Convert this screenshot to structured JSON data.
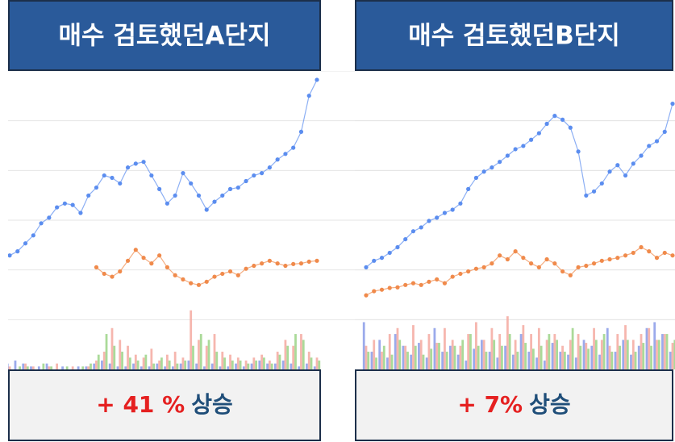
{
  "chart_data": [
    {
      "type": "line",
      "title": "매수 검토했던A단지",
      "change_label": "+ 41 %",
      "change_suffix": "상승",
      "ylim": [
        0,
        100
      ],
      "grid": true,
      "series": [
        {
          "color": "#5b8def",
          "values": [
            38.6,
            40,
            42.7,
            45.4,
            49.5,
            51.4,
            54.9,
            56.2,
            55.7,
            53,
            58.9,
            61.6,
            65.7,
            64.9,
            63,
            68.4,
            69.7,
            70.3,
            65.7,
            61.1,
            56.2,
            58.9,
            66.5,
            63,
            58.9,
            54.1,
            56.8,
            58.9,
            61.1,
            61.6,
            63.8,
            65.7,
            66.5,
            68.4,
            71.1,
            73,
            75.1,
            80.5,
            92.7,
            98.1
          ]
        },
        {
          "color": "#f08a4b",
          "values": [
            null,
            null,
            null,
            null,
            null,
            null,
            null,
            null,
            null,
            null,
            null,
            34.6,
            32.4,
            31.4,
            33.2,
            36.8,
            40.5,
            37.8,
            35.9,
            38.6,
            34.6,
            31.9,
            30.5,
            29.2,
            28.6,
            29.7,
            31.4,
            32.4,
            33.2,
            31.9,
            34.1,
            35.1,
            35.9,
            36.8,
            35.9,
            35.1,
            35.7,
            35.9,
            36.5,
            36.8
          ]
        }
      ],
      "bars": [
        {
          "color": "#8a9be8",
          "values": [
            2,
            3,
            2,
            1,
            1,
            2,
            0,
            1,
            0,
            1,
            1,
            2,
            3,
            2,
            1,
            1,
            2,
            1,
            1,
            2,
            1,
            1,
            2,
            3,
            2,
            1,
            2,
            1,
            1,
            2,
            1,
            2,
            3,
            2,
            2,
            3,
            2,
            1,
            2,
            1
          ]
        },
        {
          "color": "#f5a9a0",
          "values": [
            1,
            0,
            2,
            1,
            0,
            1,
            2,
            0,
            1,
            0,
            1,
            3,
            6,
            14,
            10,
            8,
            5,
            4,
            7,
            3,
            5,
            6,
            4,
            20,
            10,
            8,
            12,
            6,
            5,
            4,
            3,
            4,
            5,
            3,
            6,
            10,
            8,
            12,
            6,
            4
          ]
        },
        {
          "color": "#9bd387",
          "values": [
            0,
            1,
            1,
            0,
            2,
            1,
            0,
            1,
            0,
            1,
            2,
            5,
            12,
            8,
            6,
            4,
            3,
            5,
            2,
            4,
            3,
            2,
            3,
            8,
            12,
            10,
            6,
            4,
            3,
            3,
            2,
            3,
            4,
            2,
            5,
            8,
            12,
            10,
            4,
            3
          ]
        }
      ]
    },
    {
      "type": "line",
      "title": "매수 검토했던B단지",
      "change_label": "+ 7%",
      "change_suffix": "상승",
      "ylim": [
        0,
        100
      ],
      "grid": true,
      "series": [
        {
          "color": "#5b8def",
          "values": [
            34.6,
            36.8,
            37.8,
            39.5,
            41.4,
            44.1,
            46.8,
            48.1,
            50.3,
            51.4,
            53,
            54.1,
            56.2,
            61.1,
            64.9,
            67,
            68.4,
            70.3,
            72.4,
            74.6,
            75.7,
            77.8,
            80,
            83.2,
            85.9,
            84.6,
            81.9,
            73.8,
            58.9,
            60.3,
            63,
            67,
            69.2,
            65.7,
            69.7,
            72.4,
            75.7,
            77.3,
            80.5,
            90
          ]
        },
        {
          "color": "#f08a4b",
          "values": [
            25.1,
            26.5,
            27,
            27.6,
            27.8,
            28.6,
            29.2,
            28.6,
            29.7,
            30.5,
            29.2,
            31.4,
            32.4,
            33.2,
            34.1,
            34.6,
            35.9,
            38.6,
            37.3,
            40,
            37.8,
            35.9,
            34.6,
            37.3,
            35.9,
            33.2,
            31.9,
            34.6,
            35.1,
            35.9,
            36.8,
            37.3,
            37.8,
            38.6,
            39.5,
            41.4,
            40,
            37.8,
            39.5,
            38.6
          ]
        }
      ],
      "bars": [
        {
          "color": "#8a9be8",
          "values": [
            16,
            6,
            10,
            4,
            12,
            8,
            5,
            9,
            4,
            14,
            6,
            8,
            5,
            3,
            7,
            10,
            6,
            4,
            8,
            5,
            12,
            6,
            4,
            3,
            9,
            6,
            5,
            4,
            10,
            8,
            5,
            14,
            6,
            10,
            5,
            8,
            14,
            16,
            12,
            6
          ]
        },
        {
          "color": "#f5a9a0",
          "values": [
            8,
            10,
            6,
            12,
            14,
            8,
            15,
            10,
            12,
            9,
            14,
            10,
            8,
            12,
            16,
            10,
            14,
            12,
            18,
            10,
            15,
            12,
            14,
            10,
            12,
            8,
            10,
            12,
            9,
            14,
            10,
            8,
            12,
            15,
            10,
            12,
            14,
            10,
            12,
            9
          ]
        },
        {
          "color": "#9bd387",
          "values": [
            6,
            4,
            8,
            5,
            10,
            6,
            8,
            5,
            7,
            9,
            6,
            8,
            10,
            12,
            8,
            6,
            10,
            8,
            12,
            6,
            9,
            7,
            8,
            12,
            10,
            6,
            14,
            8,
            7,
            10,
            12,
            6,
            8,
            10,
            6,
            9,
            8,
            10,
            12,
            10
          ]
        }
      ]
    }
  ]
}
